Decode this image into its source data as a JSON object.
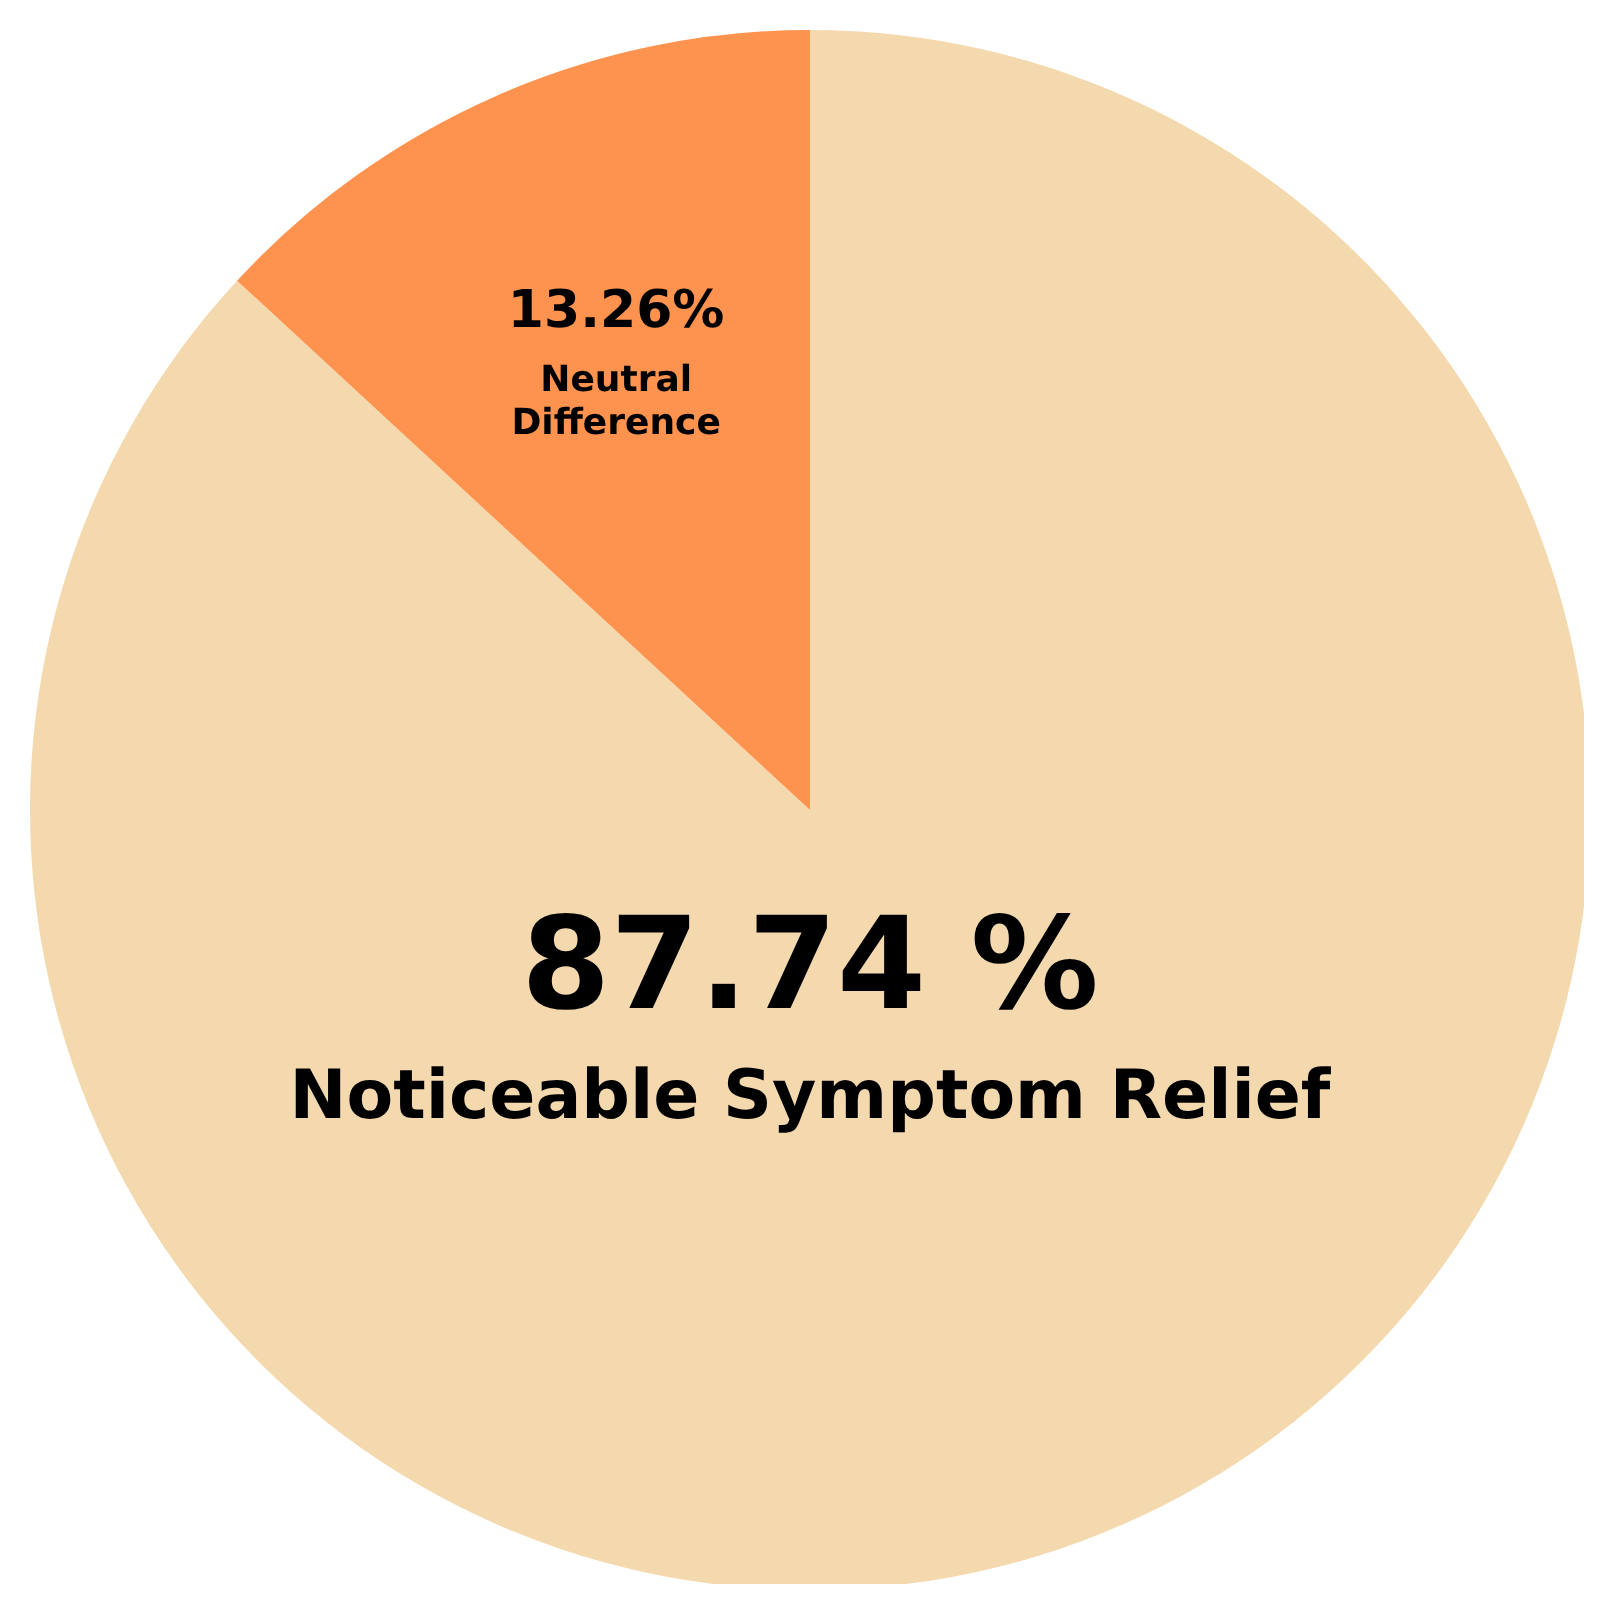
{
  "chart_data": {
    "type": "pie",
    "categories": [
      "Noticeable Symptom Relief",
      "Neutral Difference"
    ],
    "values": [
      87.74,
      13.26
    ],
    "colors": [
      "#f5d9ae",
      "#fd934e"
    ],
    "value_labels": [
      "87.74 %",
      "13.26%"
    ],
    "legend": false
  }
}
